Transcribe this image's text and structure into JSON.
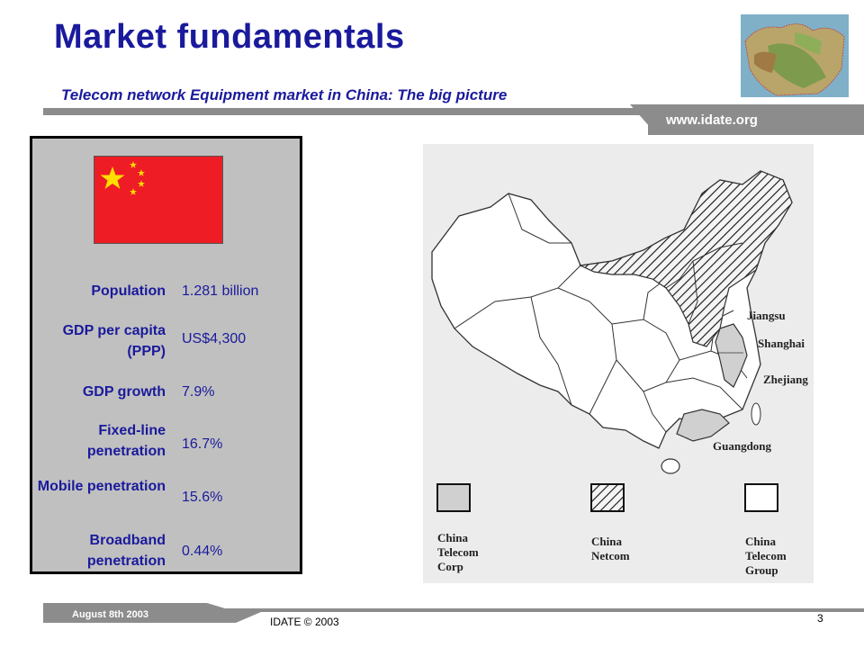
{
  "header": {
    "title": "Market fundamentals",
    "subtitle": "Telecom network Equipment market in China:  The big picture",
    "url": "www.idate.org"
  },
  "facts": [
    {
      "label": "Population",
      "value": "1.281 billion"
    },
    {
      "label": "GDP per capita (PPP)",
      "value": "US$4,300"
    },
    {
      "label": "GDP growth",
      "value": "7.9%"
    },
    {
      "label": "Fixed-line penetration",
      "value": "16.7%"
    },
    {
      "label": "Mobile penetration",
      "value": "15.6%"
    },
    {
      "label": "Broadband penetration",
      "value": "0.44%"
    }
  ],
  "map": {
    "provinces": [
      "Jiangsu",
      "Shanghai",
      "Zhejiang",
      "Guangdong"
    ],
    "legend": [
      {
        "line1": "China",
        "line2": "Telecom",
        "line3": "Corp"
      },
      {
        "line1": "China",
        "line2": "Netcom",
        "line3": ""
      },
      {
        "line1": "China",
        "line2": "Telecom",
        "line3": "Group"
      }
    ]
  },
  "footer": {
    "date": "August 8th 2003",
    "brand": "IDATE",
    "copyright": "© 2003",
    "page": "3"
  },
  "colors": {
    "title": "#1a1a9c",
    "flag_red": "#ee1c25",
    "flag_star": "#ffde00",
    "bar": "#8c8c8c",
    "panel": "#c0c0c0"
  }
}
